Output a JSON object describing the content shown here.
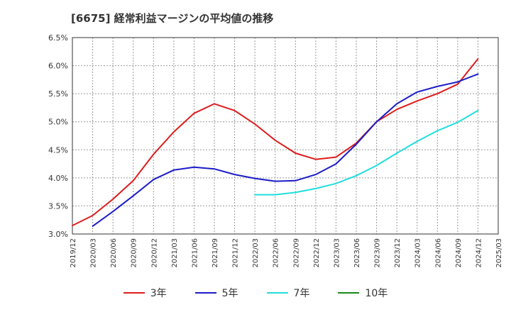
{
  "title": "[6675]  経常利益マージンの平均値の推移",
  "chart_data": {
    "type": "line",
    "title": "[6675]  経常利益マージンの平均値の推移",
    "xlabel": "",
    "ylabel": "",
    "ylim": [
      3.0,
      6.5
    ],
    "y_ticks": [
      "3.0%",
      "3.5%",
      "4.0%",
      "4.5%",
      "5.0%",
      "5.5%",
      "6.0%",
      "6.5%"
    ],
    "x_ticks": [
      "2019/12",
      "2020/03",
      "2020/06",
      "2020/09",
      "2020/12",
      "2021/03",
      "2021/06",
      "2021/09",
      "2021/12",
      "2022/03",
      "2022/06",
      "2022/09",
      "2022/12",
      "2023/03",
      "2023/06",
      "2023/09",
      "2023/12",
      "2024/03",
      "2024/06",
      "2024/09",
      "2024/12",
      "2025/03"
    ],
    "grid": true,
    "legend_position": "bottom",
    "series": [
      {
        "name": "3年",
        "color": "#dd1c1c",
        "points": [
          [
            "2019/12",
            3.15
          ],
          [
            "2020/03",
            3.33
          ],
          [
            "2020/06",
            3.62
          ],
          [
            "2020/09",
            3.95
          ],
          [
            "2020/12",
            4.42
          ],
          [
            "2021/03",
            4.82
          ],
          [
            "2021/06",
            5.15
          ],
          [
            "2021/09",
            5.32
          ],
          [
            "2021/12",
            5.2
          ],
          [
            "2022/03",
            4.96
          ],
          [
            "2022/06",
            4.67
          ],
          [
            "2022/09",
            4.44
          ],
          [
            "2022/12",
            4.33
          ],
          [
            "2023/03",
            4.37
          ],
          [
            "2023/06",
            4.62
          ],
          [
            "2023/09",
            5.0
          ],
          [
            "2023/12",
            5.22
          ],
          [
            "2024/03",
            5.37
          ],
          [
            "2024/06",
            5.5
          ],
          [
            "2024/09",
            5.67
          ],
          [
            "2024/12",
            6.12
          ]
        ]
      },
      {
        "name": "5年",
        "color": "#1c1cc8",
        "points": [
          [
            "2020/03",
            3.14
          ],
          [
            "2020/06",
            3.4
          ],
          [
            "2020/09",
            3.68
          ],
          [
            "2020/12",
            3.97
          ],
          [
            "2021/03",
            4.14
          ],
          [
            "2021/06",
            4.19
          ],
          [
            "2021/09",
            4.16
          ],
          [
            "2021/12",
            4.06
          ],
          [
            "2022/03",
            3.99
          ],
          [
            "2022/06",
            3.94
          ],
          [
            "2022/09",
            3.95
          ],
          [
            "2022/12",
            4.06
          ],
          [
            "2023/03",
            4.25
          ],
          [
            "2023/06",
            4.6
          ],
          [
            "2023/09",
            5.0
          ],
          [
            "2023/12",
            5.32
          ],
          [
            "2024/03",
            5.53
          ],
          [
            "2024/06",
            5.63
          ],
          [
            "2024/09",
            5.71
          ],
          [
            "2024/12",
            5.85
          ]
        ]
      },
      {
        "name": "7年",
        "color": "#22dede",
        "points": [
          [
            "2022/03",
            3.7
          ],
          [
            "2022/06",
            3.7
          ],
          [
            "2022/09",
            3.74
          ],
          [
            "2022/12",
            3.81
          ],
          [
            "2023/03",
            3.9
          ],
          [
            "2023/06",
            4.04
          ],
          [
            "2023/09",
            4.22
          ],
          [
            "2023/12",
            4.44
          ],
          [
            "2024/03",
            4.65
          ],
          [
            "2024/06",
            4.84
          ],
          [
            "2024/09",
            4.99
          ],
          [
            "2024/12",
            5.2
          ]
        ]
      },
      {
        "name": "10年",
        "color": "#1a8a1a",
        "points": []
      }
    ]
  }
}
